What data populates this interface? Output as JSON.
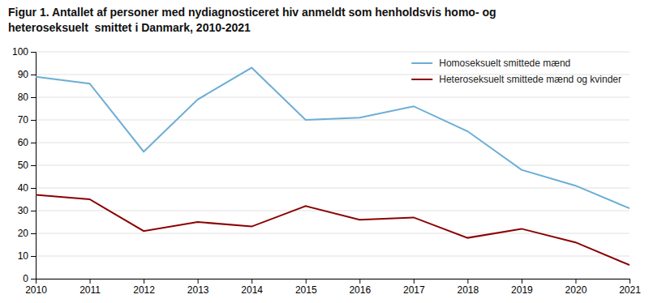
{
  "chart_data": {
    "type": "line",
    "title": "Figur 1. Antallet af personer med nydiagnosticeret hiv anmeldt som henholdsvis homo- og",
    "subtitle": "heteroseksuelt  smittet i Danmark, 2010-2021",
    "x": [
      2010,
      2011,
      2012,
      2013,
      2014,
      2015,
      2016,
      2017,
      2018,
      2019,
      2020,
      2021
    ],
    "series": [
      {
        "name": "Homoseksuelt smittede mænd",
        "color": "#6baed6",
        "values": [
          89,
          86,
          56,
          79,
          93,
          70,
          71,
          76,
          65,
          48,
          41,
          31
        ]
      },
      {
        "name": "Heteroseksuelt smittede mænd og kvinder",
        "color": "#8b0000",
        "values": [
          37,
          35,
          21,
          25,
          23,
          32,
          26,
          27,
          18,
          22,
          16,
          6
        ]
      }
    ],
    "xlim": [
      2010,
      2021
    ],
    "xticks": [
      2010,
      2011,
      2012,
      2013,
      2014,
      2015,
      2016,
      2017,
      2018,
      2019,
      2020,
      2021
    ],
    "ylim": [
      0,
      100
    ],
    "yticks": [
      0,
      10,
      20,
      30,
      40,
      50,
      60,
      70,
      80,
      90,
      100
    ],
    "grid": true,
    "legend": "upper right"
  }
}
